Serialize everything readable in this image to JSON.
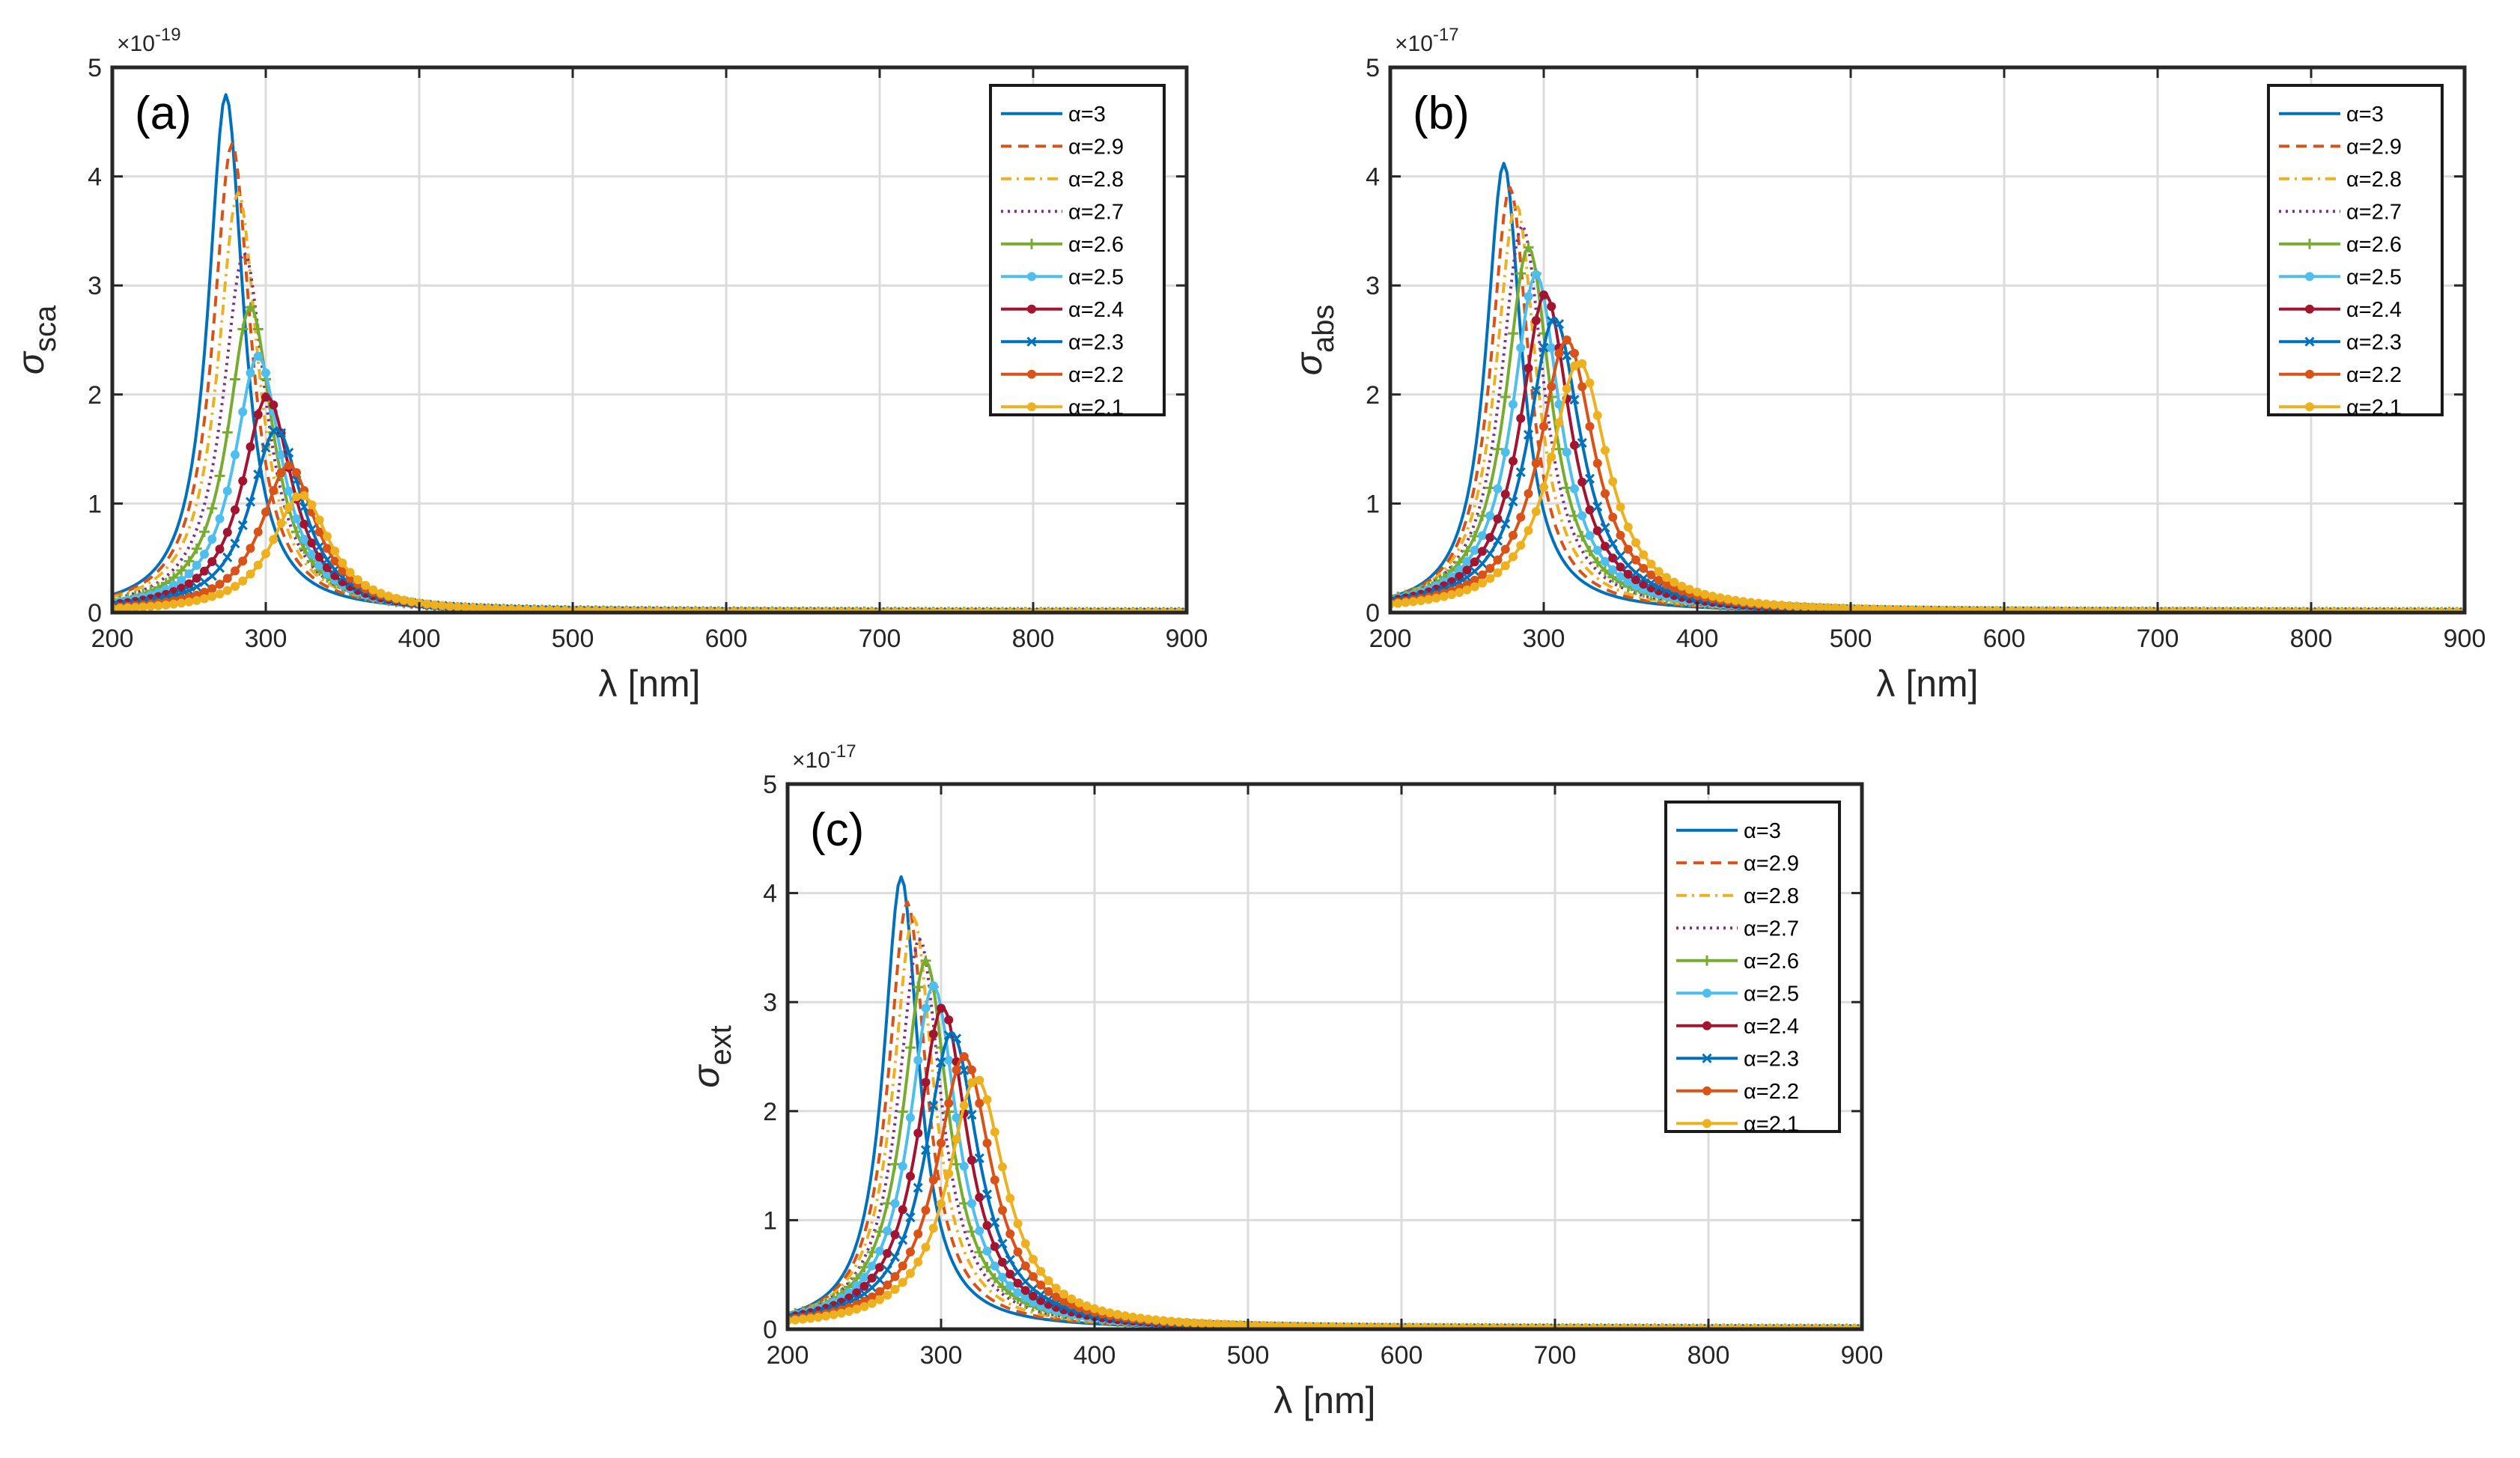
{
  "figure": {
    "legend_label": "α=",
    "alpha_values": [
      "3",
      "2.9",
      "2.8",
      "2.7",
      "2.6",
      "2.5",
      "2.4",
      "2.3",
      "2.2",
      "2.1"
    ],
    "series_styles": [
      {
        "alpha": "3",
        "color": "#0072BD",
        "dash": "solid",
        "marker": "none"
      },
      {
        "alpha": "2.9",
        "color": "#D95319",
        "dash": "dashed",
        "marker": "none"
      },
      {
        "alpha": "2.8",
        "color": "#EDB120",
        "dash": "dash-dot",
        "marker": "none"
      },
      {
        "alpha": "2.7",
        "color": "#7E2F8E",
        "dash": "dotted",
        "marker": "none"
      },
      {
        "alpha": "2.6",
        "color": "#77AC30",
        "dash": "solid",
        "marker": "plus"
      },
      {
        "alpha": "2.5",
        "color": "#4DBEEE",
        "dash": "solid",
        "marker": "circle"
      },
      {
        "alpha": "2.4",
        "color": "#A2142F",
        "dash": "solid",
        "marker": "circle"
      },
      {
        "alpha": "2.3",
        "color": "#0072BD",
        "dash": "solid",
        "marker": "x"
      },
      {
        "alpha": "2.2",
        "color": "#D95319",
        "dash": "solid",
        "marker": "circle"
      },
      {
        "alpha": "2.1",
        "color": "#EDB120",
        "dash": "solid",
        "marker": "circle"
      }
    ]
  },
  "chart_data": [
    {
      "type": "line",
      "panel_label": "(a)",
      "title": "",
      "xlabel": "λ [nm]",
      "ylabel_base": "σ",
      "ylabel_sub": "sca",
      "multiplier_base": "×10",
      "multiplier_exp": "-19",
      "xlim": [
        200,
        900
      ],
      "ylim": [
        0,
        5
      ],
      "xticks": [
        200,
        300,
        400,
        500,
        600,
        700,
        800,
        900
      ],
      "yticks": [
        0,
        1,
        2,
        3,
        4,
        5
      ],
      "grid": true,
      "legend_position": "top-right",
      "curve_model": "Lorentzian resonance peak per series (peak_x nm, peak_y in units of the multiplier, half-width in nm)",
      "series": [
        {
          "name": "α=3",
          "peak_x": 274,
          "peak_y": 4.75,
          "half_width": 14
        },
        {
          "name": "α=2.9",
          "peak_x": 278,
          "peak_y": 4.3,
          "half_width": 15
        },
        {
          "name": "α=2.8",
          "peak_x": 282,
          "peak_y": 3.85,
          "half_width": 16
        },
        {
          "name": "α=2.7",
          "peak_x": 286,
          "peak_y": 3.3,
          "half_width": 17
        },
        {
          "name": "α=2.6",
          "peak_x": 290,
          "peak_y": 2.8,
          "half_width": 18
        },
        {
          "name": "α=2.5",
          "peak_x": 295,
          "peak_y": 2.35,
          "half_width": 19
        },
        {
          "name": "α=2.4",
          "peak_x": 301,
          "peak_y": 1.98,
          "half_width": 20
        },
        {
          "name": "α=2.3",
          "peak_x": 307,
          "peak_y": 1.68,
          "half_width": 21
        },
        {
          "name": "α=2.2",
          "peak_x": 315,
          "peak_y": 1.35,
          "half_width": 22
        },
        {
          "name": "α=2.1",
          "peak_x": 323,
          "peak_y": 1.08,
          "half_width": 23
        }
      ]
    },
    {
      "type": "line",
      "panel_label": "(b)",
      "title": "",
      "xlabel": "λ [nm]",
      "ylabel_base": "σ",
      "ylabel_sub": "abs",
      "multiplier_base": "×10",
      "multiplier_exp": "-17",
      "xlim": [
        200,
        900
      ],
      "ylim": [
        0,
        5
      ],
      "xticks": [
        200,
        300,
        400,
        500,
        600,
        700,
        800,
        900
      ],
      "yticks": [
        0,
        1,
        2,
        3,
        4,
        5
      ],
      "grid": true,
      "legend_position": "top-right",
      "curve_model": "Lorentzian resonance peak per series (peak_x nm, peak_y in units of the multiplier, half-width in nm)",
      "series": [
        {
          "name": "α=3",
          "peak_x": 274,
          "peak_y": 4.12,
          "half_width": 14
        },
        {
          "name": "α=2.9",
          "peak_x": 278,
          "peak_y": 3.9,
          "half_width": 15
        },
        {
          "name": "α=2.8",
          "peak_x": 282,
          "peak_y": 3.75,
          "half_width": 16
        },
        {
          "name": "α=2.7",
          "peak_x": 286,
          "peak_y": 3.55,
          "half_width": 17
        },
        {
          "name": "α=2.6",
          "peak_x": 290,
          "peak_y": 3.35,
          "half_width": 18
        },
        {
          "name": "α=2.5",
          "peak_x": 295,
          "peak_y": 3.1,
          "half_width": 19
        },
        {
          "name": "α=2.4",
          "peak_x": 301,
          "peak_y": 2.92,
          "half_width": 20
        },
        {
          "name": "α=2.3",
          "peak_x": 307,
          "peak_y": 2.7,
          "half_width": 21
        },
        {
          "name": "α=2.2",
          "peak_x": 315,
          "peak_y": 2.5,
          "half_width": 22
        },
        {
          "name": "α=2.1",
          "peak_x": 323,
          "peak_y": 2.3,
          "half_width": 23
        }
      ]
    },
    {
      "type": "line",
      "panel_label": "(c)",
      "title": "",
      "xlabel": "λ [nm]",
      "ylabel_base": "σ",
      "ylabel_sub": "ext",
      "multiplier_base": "×10",
      "multiplier_exp": "-17",
      "xlim": [
        200,
        900
      ],
      "ylim": [
        0,
        5
      ],
      "xticks": [
        200,
        300,
        400,
        500,
        600,
        700,
        800,
        900
      ],
      "yticks": [
        0,
        1,
        2,
        3,
        4,
        5
      ],
      "grid": true,
      "legend_position": "top-right",
      "curve_model": "Lorentzian resonance peak per series (peak_x nm, peak_y in units of the multiplier, half-width in nm)",
      "series": [
        {
          "name": "α=3",
          "peak_x": 274,
          "peak_y": 4.15,
          "half_width": 14
        },
        {
          "name": "α=2.9",
          "peak_x": 278,
          "peak_y": 3.92,
          "half_width": 15
        },
        {
          "name": "α=2.8",
          "peak_x": 282,
          "peak_y": 3.78,
          "half_width": 16
        },
        {
          "name": "α=2.7",
          "peak_x": 286,
          "peak_y": 3.58,
          "half_width": 17
        },
        {
          "name": "α=2.6",
          "peak_x": 290,
          "peak_y": 3.38,
          "half_width": 18
        },
        {
          "name": "α=2.5",
          "peak_x": 295,
          "peak_y": 3.15,
          "half_width": 19
        },
        {
          "name": "α=2.4",
          "peak_x": 301,
          "peak_y": 2.95,
          "half_width": 20
        },
        {
          "name": "α=2.3",
          "peak_x": 307,
          "peak_y": 2.72,
          "half_width": 21
        },
        {
          "name": "α=2.2",
          "peak_x": 315,
          "peak_y": 2.5,
          "half_width": 22
        },
        {
          "name": "α=2.1",
          "peak_x": 323,
          "peak_y": 2.3,
          "half_width": 23
        }
      ]
    }
  ]
}
